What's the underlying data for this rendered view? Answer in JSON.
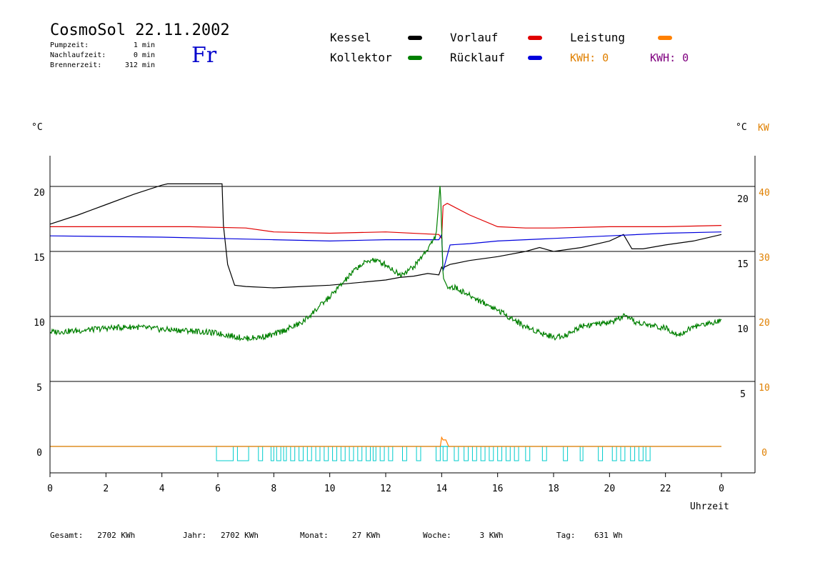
{
  "header": {
    "title": "CosmoSol 22.11.2002",
    "day": "Fr",
    "stats": [
      {
        "label": "Pumpzeit:",
        "value": "1 min"
      },
      {
        "label": "Nachlaufzeit:",
        "value": "0 min"
      },
      {
        "label": "Brennerzeit:",
        "value": "312 min"
      }
    ]
  },
  "legend": {
    "items": [
      {
        "label": "Kessel",
        "color": "#000000"
      },
      {
        "label": "Vorlauf",
        "color": "#e00000"
      },
      {
        "label": "Leistung",
        "color": "#ff8000"
      },
      {
        "label": "Kollektor",
        "color": "#008000"
      },
      {
        "label": "Rücklauf",
        "color": "#0000dd"
      }
    ],
    "kwh": [
      {
        "text": "KWH: 0",
        "color": "#e08000"
      },
      {
        "text": "KWH: 0",
        "color": "#800080"
      }
    ]
  },
  "axes": {
    "left_unit": "°C",
    "right_unit_c": "°C",
    "right_unit_kw": "KW",
    "left_ticks": [
      "20",
      "15",
      "10",
      "5",
      "0"
    ],
    "right_c_ticks": [
      "20",
      "15",
      "10",
      "5"
    ],
    "right_kw_ticks": [
      "40",
      "30",
      "20",
      "10",
      "0"
    ],
    "x_ticks": [
      "0",
      "2",
      "4",
      "6",
      "8",
      "10",
      "12",
      "14",
      "16",
      "18",
      "20",
      "22",
      "0"
    ],
    "xlabel": "Uhrzeit"
  },
  "footer": [
    {
      "label": "Gesamt:",
      "value": "2702 KWh"
    },
    {
      "label": "Jahr:",
      "value": "2702 KWh"
    },
    {
      "label": "Monat:",
      "value": "27 KWh"
    },
    {
      "label": "Woche:",
      "value": "3 KWh"
    },
    {
      "label": "Tag:",
      "value": "631 Wh"
    }
  ],
  "chart_data": {
    "type": "line",
    "xlabel": "Uhrzeit",
    "ylabel": "°C",
    "x_range": [
      0,
      24
    ],
    "ylim": [
      -2,
      22
    ],
    "y2lim": [
      -4,
      44
    ],
    "y2label": "KW",
    "grid": "horizontal",
    "series": [
      {
        "name": "Kessel",
        "color": "#000000",
        "x": [
          0,
          1,
          2,
          3,
          4,
          4.2,
          6.15,
          6.2,
          6.35,
          6.6,
          7,
          8,
          9,
          10,
          11,
          12,
          12.5,
          13,
          13.5,
          13.9,
          14.0,
          14.05,
          14.1,
          14.3,
          15,
          16,
          17,
          17.5,
          18,
          19,
          20,
          20.5,
          20.8,
          21.2,
          22,
          23,
          24
        ],
        "y": [
          17.1,
          17.8,
          18.6,
          19.4,
          20.1,
          20.2,
          20.2,
          17,
          14,
          12.4,
          12.3,
          12.2,
          12.3,
          12.4,
          12.6,
          12.8,
          13.0,
          13.1,
          13.3,
          13.2,
          13.8,
          13.6,
          13.8,
          14.0,
          14.3,
          14.6,
          15.0,
          15.3,
          15.0,
          15.3,
          15.8,
          16.3,
          15.2,
          15.2,
          15.5,
          15.8,
          16.3
        ]
      },
      {
        "name": "Vorlauf",
        "color": "#e00000",
        "x": [
          0,
          5,
          7,
          8,
          10,
          12,
          13.9,
          14.0,
          14.05,
          14.2,
          15,
          16,
          17,
          18,
          20,
          22,
          24
        ],
        "y": [
          16.9,
          16.9,
          16.8,
          16.5,
          16.4,
          16.5,
          16.3,
          16.0,
          18.5,
          18.7,
          17.8,
          16.9,
          16.8,
          16.8,
          16.9,
          16.9,
          17.0
        ]
      },
      {
        "name": "Rücklauf",
        "color": "#0000dd",
        "x": [
          0,
          4,
          6,
          8,
          10,
          12,
          13.9,
          14.0,
          14.05,
          14.3,
          15,
          16,
          18,
          20,
          22,
          24
        ],
        "y": [
          16.2,
          16.1,
          16.0,
          15.9,
          15.8,
          15.9,
          15.9,
          16.3,
          13.5,
          15.5,
          15.6,
          15.8,
          16.0,
          16.2,
          16.4,
          16.5
        ]
      },
      {
        "name": "Kollektor",
        "color": "#008000",
        "x": [
          0,
          1,
          2,
          3,
          4,
          5,
          6,
          7,
          7.5,
          8,
          9,
          10,
          11,
          11.5,
          12,
          12.5,
          13,
          13.5,
          13.8,
          13.95,
          14.05,
          14.2,
          14.5,
          15,
          16,
          17,
          18,
          18.5,
          19,
          20,
          20.5,
          21,
          22,
          22.5,
          23,
          24
        ],
        "y": [
          8.8,
          8.9,
          9.1,
          9.2,
          9.0,
          8.9,
          8.7,
          8.3,
          8.4,
          8.6,
          9.5,
          11.5,
          13.8,
          14.4,
          14.0,
          13.2,
          13.8,
          15.2,
          16.2,
          20.3,
          13.0,
          12.3,
          12.2,
          11.6,
          10.5,
          9.2,
          8.4,
          8.6,
          9.3,
          9.5,
          10.0,
          9.5,
          9.1,
          8.6,
          9.2,
          9.7
        ]
      },
      {
        "name": "Leistung",
        "color": "#ff8000",
        "axis": "KW",
        "x": [
          0,
          13.95,
          14.0,
          14.05,
          14.15,
          14.2,
          14.25,
          24
        ],
        "y": [
          0,
          0,
          1.4,
          1.0,
          1.0,
          0.5,
          0,
          0
        ]
      },
      {
        "name": "Pumpe",
        "color": "#00cccc",
        "type": "step",
        "on_intervals": [
          [
            5.95,
            6.55
          ],
          [
            6.7,
            7.1
          ],
          [
            7.45,
            7.6
          ],
          [
            7.9,
            8.0
          ],
          [
            8.1,
            8.25
          ],
          [
            8.35,
            8.45
          ],
          [
            8.6,
            8.75
          ],
          [
            8.9,
            9.05
          ],
          [
            9.2,
            9.35
          ],
          [
            9.5,
            9.65
          ],
          [
            9.8,
            9.95
          ],
          [
            10.1,
            10.25
          ],
          [
            10.4,
            10.55
          ],
          [
            10.7,
            10.85
          ],
          [
            11.0,
            11.15
          ],
          [
            11.3,
            11.45
          ],
          [
            11.55,
            11.65
          ],
          [
            11.8,
            11.95
          ],
          [
            12.1,
            12.25
          ],
          [
            12.6,
            12.75
          ],
          [
            13.1,
            13.25
          ],
          [
            13.8,
            13.95
          ],
          [
            14.05,
            14.2
          ],
          [
            14.45,
            14.6
          ],
          [
            14.8,
            14.95
          ],
          [
            15.1,
            15.25
          ],
          [
            15.4,
            15.55
          ],
          [
            15.7,
            15.85
          ],
          [
            16.0,
            16.15
          ],
          [
            16.3,
            16.45
          ],
          [
            16.6,
            16.75
          ],
          [
            17.0,
            17.15
          ],
          [
            17.6,
            17.75
          ],
          [
            18.35,
            18.5
          ],
          [
            18.95,
            19.05
          ],
          [
            19.6,
            19.75
          ],
          [
            20.1,
            20.25
          ],
          [
            20.4,
            20.55
          ],
          [
            20.75,
            20.9
          ],
          [
            21.05,
            21.2
          ],
          [
            21.3,
            21.45
          ]
        ]
      }
    ]
  }
}
